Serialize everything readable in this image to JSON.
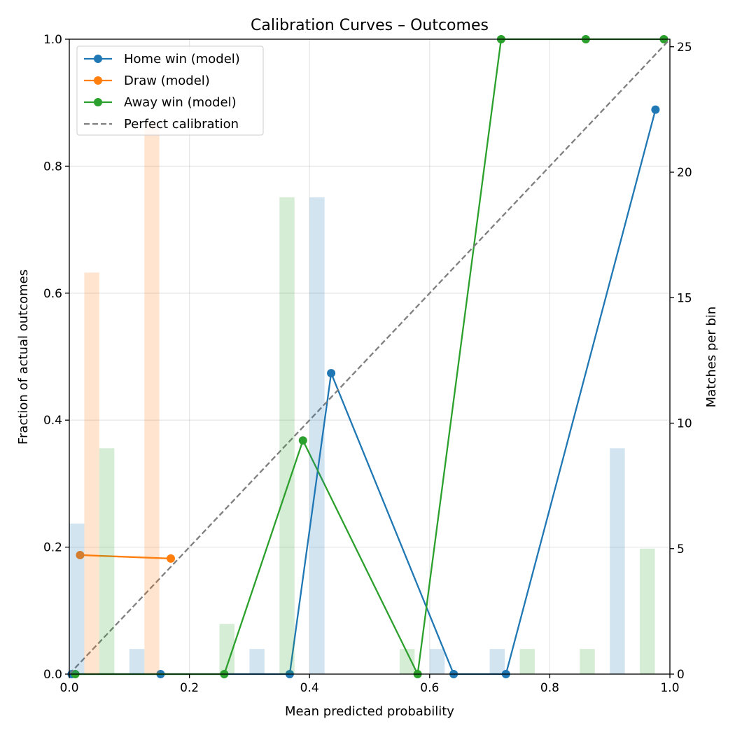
{
  "chart_data": {
    "type": "line",
    "title": "Calibration Curves – Outcomes",
    "xlabel": "Mean predicted probability",
    "ylabel": "Fraction of actual outcomes",
    "ylabel_right": "Matches per bin",
    "xlim": [
      0,
      1
    ],
    "ylim": [
      0,
      1
    ],
    "ylim_right": [
      0,
      25.3
    ],
    "xticks": [
      "0.0",
      "0.2",
      "0.4",
      "0.6",
      "0.8",
      "1.0"
    ],
    "yticks": [
      "0.0",
      "0.2",
      "0.4",
      "0.6",
      "0.8",
      "1.0"
    ],
    "yticks_right": [
      "0",
      "5",
      "10",
      "15",
      "20",
      "25"
    ],
    "grid": true,
    "legend_position": "upper-left",
    "series": [
      {
        "name": "Home win (model)",
        "color": "#1f77b4",
        "x": [
          0.004,
          0.152,
          0.367,
          0.436,
          0.64,
          0.727,
          0.976
        ],
        "y": [
          0,
          0,
          0,
          0.474,
          0,
          0,
          0.889
        ]
      },
      {
        "name": "Draw (model)",
        "color": "#ff7f0e",
        "x": [
          0.018,
          0.169
        ],
        "y": [
          0.1875,
          0.182
        ]
      },
      {
        "name": "Away win (model)",
        "color": "#2ca02c",
        "x": [
          0.01,
          0.258,
          0.389,
          0.58,
          0.719,
          0.86,
          0.99
        ],
        "y": [
          0,
          0,
          0.368,
          0,
          1,
          1,
          1
        ]
      },
      {
        "name": "Perfect calibration",
        "color": "#7f7f7f",
        "dashed": true,
        "x": [
          0,
          1
        ],
        "y": [
          0,
          1
        ]
      }
    ],
    "histogram": {
      "bins": [
        "0.0-0.1",
        "0.1-0.2",
        "0.2-0.3",
        "0.3-0.4",
        "0.4-0.5",
        "0.5-0.6",
        "0.6-0.7",
        "0.7-0.8",
        "0.8-0.9",
        "0.9-1.0"
      ],
      "home_counts": [
        6,
        1,
        0,
        1,
        19,
        0,
        1,
        1,
        0,
        9
      ],
      "draw_counts": [
        16,
        22,
        0,
        0,
        0,
        0,
        0,
        0,
        0,
        0
      ],
      "away_counts": [
        9,
        0,
        2,
        19,
        0,
        1,
        0,
        1,
        1,
        5
      ]
    }
  }
}
